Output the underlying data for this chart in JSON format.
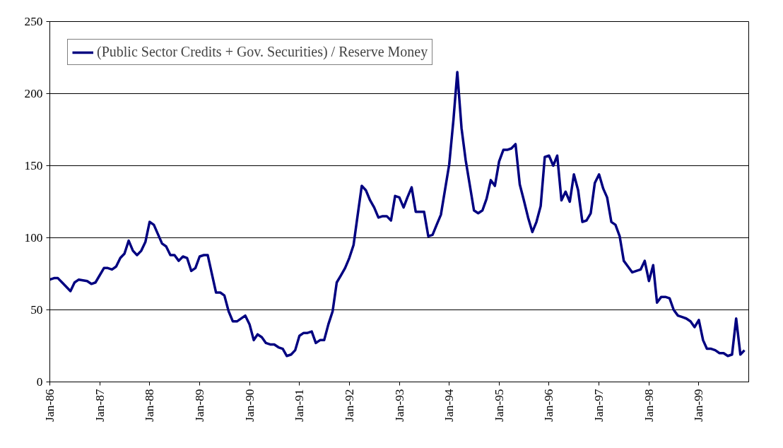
{
  "chart_data": {
    "type": "line",
    "xlim": [
      "1986-01",
      "2000-01"
    ],
    "ylim": [
      0,
      250
    ],
    "yticks": [
      0,
      50,
      100,
      150,
      200,
      250
    ],
    "xticks": [
      {
        "value": "1986-01",
        "label": "Jan-86"
      },
      {
        "value": "1987-01",
        "label": "Jan-87"
      },
      {
        "value": "1988-01",
        "label": "Jan-88"
      },
      {
        "value": "1989-01",
        "label": "Jan-89"
      },
      {
        "value": "1990-01",
        "label": "Jan-90"
      },
      {
        "value": "1991-01",
        "label": "Jan-91"
      },
      {
        "value": "1992-01",
        "label": "Jan-92"
      },
      {
        "value": "1993-01",
        "label": "Jan-93"
      },
      {
        "value": "1994-01",
        "label": "Jan-94"
      },
      {
        "value": "1995-01",
        "label": "Jan-95"
      },
      {
        "value": "1996-01",
        "label": "Jan-96"
      },
      {
        "value": "1997-01",
        "label": "Jan-97"
      },
      {
        "value": "1998-01",
        "label": "Jan-98"
      },
      {
        "value": "1999-01",
        "label": "Jan-99"
      }
    ],
    "grid": "y",
    "legend": "top left",
    "marker": "none",
    "line_style": "solid",
    "series": [
      {
        "name": "(Public Sector Credits + Gov. Securities) / Reserve Money",
        "color": "#000080",
        "x": [
          "1986-01",
          "1986-02",
          "1986-03",
          "1986-04",
          "1986-06",
          "1986-07",
          "1986-08",
          "1986-10",
          "1986-11",
          "1986-12",
          "1987-02",
          "1987-03",
          "1987-04",
          "1987-05",
          "1987-06",
          "1987-07",
          "1987-08",
          "1987-09",
          "1987-10",
          "1987-11",
          "1987-12",
          "1988-01",
          "1988-02",
          "1988-04",
          "1988-05",
          "1988-06",
          "1988-07",
          "1988-08",
          "1988-09",
          "1988-10",
          "1988-11",
          "1988-12",
          "1989-01",
          "1989-02",
          "1989-03",
          "1989-05",
          "1989-06",
          "1989-07",
          "1989-08",
          "1989-09",
          "1989-10",
          "1989-12",
          "1990-01",
          "1990-02",
          "1990-03",
          "1990-04",
          "1990-05",
          "1990-06",
          "1990-07",
          "1990-08",
          "1990-09",
          "1990-10",
          "1990-11",
          "1990-12",
          "1991-01",
          "1991-02",
          "1991-03",
          "1991-04",
          "1991-05",
          "1991-06",
          "1991-07",
          "1991-08",
          "1991-09",
          "1991-10",
          "1991-11",
          "1991-12",
          "1992-01",
          "1992-02",
          "1992-03",
          "1992-04",
          "1992-05",
          "1992-06",
          "1992-07",
          "1992-08",
          "1992-09",
          "1992-10",
          "1992-11",
          "1992-12",
          "1993-01",
          "1993-02",
          "1993-03",
          "1993-04",
          "1993-05",
          "1993-06",
          "1993-07",
          "1993-08",
          "1993-09",
          "1993-10",
          "1993-11",
          "1994-01",
          "1994-02",
          "1994-03",
          "1994-04",
          "1994-05",
          "1994-07",
          "1994-08",
          "1994-09",
          "1994-10",
          "1994-11",
          "1994-12",
          "1995-01",
          "1995-02",
          "1995-03",
          "1995-04",
          "1995-05",
          "1995-06",
          "1995-07",
          "1995-08",
          "1995-09",
          "1995-10",
          "1995-11",
          "1995-12",
          "1996-01",
          "1996-02",
          "1996-03",
          "1996-04",
          "1996-05",
          "1996-06",
          "1996-07",
          "1996-08",
          "1996-09",
          "1996-10",
          "1996-11",
          "1996-12",
          "1997-01",
          "1997-02",
          "1997-03",
          "1997-04",
          "1997-05",
          "1997-06",
          "1997-07",
          "1997-08",
          "1997-09",
          "1997-10",
          "1997-11",
          "1997-12",
          "1998-01",
          "1998-02",
          "1998-03",
          "1998-04",
          "1998-05",
          "1998-06",
          "1998-07",
          "1998-08",
          "1998-09",
          "1998-10",
          "1998-11",
          "1998-12",
          "1999-01",
          "1999-02",
          "1999-03",
          "1999-04",
          "1999-05",
          "1999-06",
          "1999-07",
          "1999-08",
          "1999-09",
          "1999-10",
          "1999-11",
          "1999-12"
        ],
        "values": [
          71,
          72,
          72,
          69,
          63,
          69,
          71,
          70,
          68,
          69,
          79,
          79,
          78,
          80,
          86,
          89,
          98,
          91,
          88,
          91,
          97,
          111,
          109,
          96,
          94,
          88,
          88,
          84,
          87,
          86,
          77,
          79,
          87,
          88,
          88,
          62,
          62,
          60,
          49,
          42,
          42,
          46,
          40,
          29,
          33,
          31,
          27,
          26,
          26,
          24,
          23,
          18,
          19,
          22,
          32,
          34,
          34,
          35,
          27,
          29,
          29,
          40,
          49,
          69,
          74,
          79,
          86,
          95,
          115,
          136,
          133,
          126,
          121,
          114,
          115,
          115,
          112,
          129,
          128,
          121,
          128,
          135,
          118,
          118,
          118,
          101,
          102,
          109,
          116,
          151,
          182,
          215,
          176,
          154,
          119,
          117,
          119,
          127,
          140,
          136,
          153,
          161,
          161,
          162,
          165,
          137,
          126,
          114,
          104,
          111,
          122,
          156,
          157,
          150,
          157,
          126,
          132,
          125,
          144,
          133,
          111,
          112,
          117,
          138,
          144,
          134,
          128,
          111,
          109,
          101,
          84,
          80,
          76,
          77,
          78,
          84,
          70,
          81,
          55,
          59,
          59,
          58,
          50,
          46,
          45,
          44,
          42,
          38,
          43,
          29,
          23,
          23,
          22,
          20,
          20,
          18,
          19,
          44,
          19,
          22
        ]
      }
    ]
  }
}
